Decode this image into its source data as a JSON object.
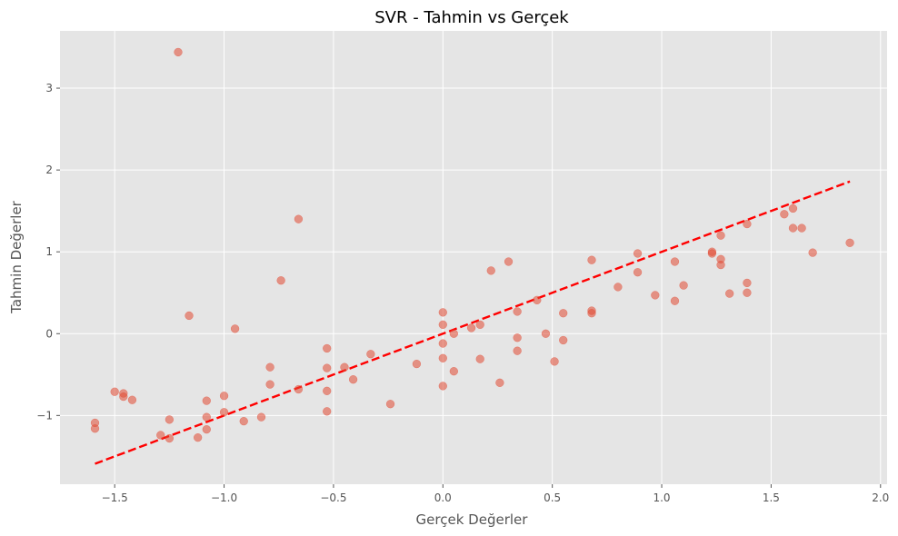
{
  "chart_data": {
    "type": "scatter",
    "title": "SVR - Tahmin vs Gerçek",
    "xlabel": "Gerçek Değerler",
    "ylabel": "Tahmin Değerler",
    "xlim": [
      -1.75,
      2.03
    ],
    "ylim": [
      -1.84,
      3.7
    ],
    "xticks": [
      -1.5,
      -1.0,
      -0.5,
      0.0,
      0.5,
      1.0,
      1.5,
      2.0
    ],
    "xtick_labels": [
      "−1.5",
      "−1.0",
      "−0.5",
      "0.0",
      "0.5",
      "1.0",
      "1.5",
      "2.0"
    ],
    "yticks": [
      -1,
      0,
      1,
      2,
      3
    ],
    "ytick_labels": [
      "−1",
      "0",
      "1",
      "2",
      "3"
    ],
    "grid": true,
    "colors": {
      "points": "#E24A33",
      "reference_line": "#ff0000",
      "background": "#E5E5E5"
    },
    "reference_line": {
      "style": "dashed",
      "x": [
        -1.59,
        1.86
      ],
      "y": [
        -1.59,
        1.86
      ]
    },
    "points": [
      [
        -1.21,
        3.44
      ],
      [
        -0.66,
        1.4
      ],
      [
        -0.74,
        0.65
      ],
      [
        -1.16,
        0.22
      ],
      [
        -0.95,
        0.06
      ],
      [
        -1.59,
        -1.09
      ],
      [
        -1.59,
        -1.16
      ],
      [
        -1.5,
        -0.71
      ],
      [
        -1.46,
        -0.73
      ],
      [
        -1.46,
        -0.77
      ],
      [
        -1.42,
        -0.81
      ],
      [
        -1.29,
        -1.24
      ],
      [
        -1.25,
        -1.05
      ],
      [
        -1.25,
        -1.28
      ],
      [
        -1.12,
        -1.27
      ],
      [
        -1.08,
        -0.82
      ],
      [
        -1.08,
        -1.02
      ],
      [
        -1.08,
        -1.17
      ],
      [
        -1.0,
        -0.76
      ],
      [
        -1.0,
        -0.96
      ],
      [
        -0.91,
        -1.07
      ],
      [
        -0.83,
        -1.02
      ],
      [
        -0.79,
        -0.41
      ],
      [
        -0.79,
        -0.62
      ],
      [
        -0.66,
        -0.68
      ],
      [
        -0.53,
        -0.18
      ],
      [
        -0.53,
        -0.42
      ],
      [
        -0.53,
        -0.7
      ],
      [
        -0.53,
        -0.95
      ],
      [
        -0.45,
        -0.41
      ],
      [
        -0.41,
        -0.56
      ],
      [
        -0.33,
        -0.25
      ],
      [
        -0.24,
        -0.86
      ],
      [
        -0.12,
        -0.37
      ],
      [
        0.0,
        0.26
      ],
      [
        0.0,
        0.11
      ],
      [
        0.0,
        -0.12
      ],
      [
        0.0,
        -0.3
      ],
      [
        0.0,
        -0.64
      ],
      [
        0.05,
        0.0
      ],
      [
        0.05,
        -0.46
      ],
      [
        0.13,
        0.07
      ],
      [
        0.17,
        0.11
      ],
      [
        0.17,
        -0.31
      ],
      [
        0.22,
        0.77
      ],
      [
        0.26,
        -0.6
      ],
      [
        0.3,
        0.88
      ],
      [
        0.34,
        0.27
      ],
      [
        0.34,
        -0.05
      ],
      [
        0.34,
        -0.21
      ],
      [
        0.43,
        0.41
      ],
      [
        0.47,
        0.0
      ],
      [
        0.51,
        -0.34
      ],
      [
        0.55,
        0.25
      ],
      [
        0.55,
        -0.08
      ],
      [
        0.68,
        0.9
      ],
      [
        0.68,
        0.28
      ],
      [
        0.68,
        0.25
      ],
      [
        0.8,
        0.57
      ],
      [
        0.89,
        0.98
      ],
      [
        0.89,
        0.75
      ],
      [
        0.97,
        0.47
      ],
      [
        1.06,
        0.88
      ],
      [
        1.06,
        0.4
      ],
      [
        1.1,
        0.59
      ],
      [
        1.23,
        1.0
      ],
      [
        1.23,
        0.98
      ],
      [
        1.27,
        1.2
      ],
      [
        1.27,
        0.91
      ],
      [
        1.27,
        0.84
      ],
      [
        1.31,
        0.49
      ],
      [
        1.39,
        1.34
      ],
      [
        1.39,
        0.62
      ],
      [
        1.39,
        0.5
      ],
      [
        1.56,
        1.46
      ],
      [
        1.6,
        1.53
      ],
      [
        1.6,
        1.29
      ],
      [
        1.64,
        1.29
      ],
      [
        1.69,
        0.99
      ],
      [
        1.86,
        1.11
      ]
    ]
  }
}
